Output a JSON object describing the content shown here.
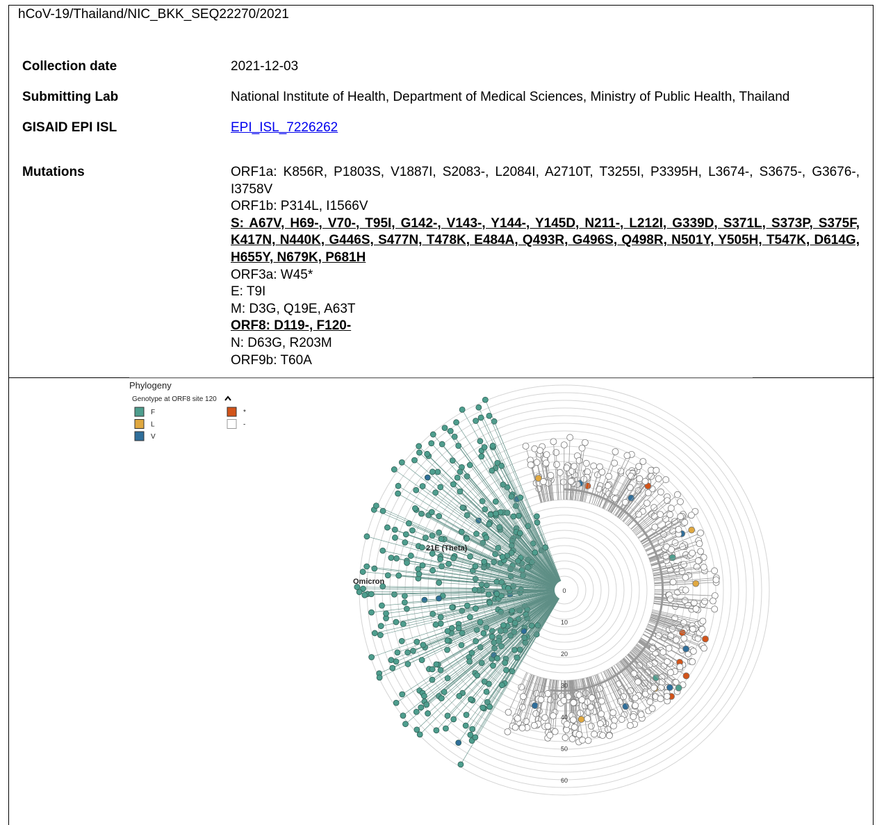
{
  "header": {
    "title": "hCoV-19/Thailand/NIC_BKK_SEQ22270/2021"
  },
  "fields": [
    {
      "label": "Collection date",
      "value": "2021-12-03"
    },
    {
      "label": "Submitting Lab",
      "value": "National Institute of Health, Department of Medical Sciences, Ministry of Public Health, Thailand"
    },
    {
      "label": "GISAID EPI ISL",
      "value": "EPI_ISL_7226262",
      "link": true
    }
  ],
  "mutations": {
    "label": "Mutations",
    "lines": [
      {
        "text": "ORF1a: K856R, P1803S, V1887I, S2083-, L2084I, A2710T, T3255I, P3395H, L3674-, S3675-, G3676-, I3758V",
        "emphasis": false
      },
      {
        "text": "ORF1b: P314L, I1566V",
        "emphasis": false
      },
      {
        "text": "S: A67V, H69-, V70-, T95I, G142-, V143-, Y144-, Y145D, N211-, L212I, G339D, S371L, S373P, S375F, K417N, N440K, G446S, S477N, T478K, E484A, Q493R, G496S, Q498R, N501Y, Y505H, T547K, D614G, H655Y, N679K, P681H",
        "emphasis": true
      },
      {
        "text": "ORF3a: W45*",
        "emphasis": false
      },
      {
        "text": "E: T9I",
        "emphasis": false
      },
      {
        "text": "M: D3G, Q19E, A63T",
        "emphasis": false
      },
      {
        "text": "ORF8: D119-, F120-",
        "emphasis": true
      },
      {
        "text": "N: D63G, R203M",
        "emphasis": false
      },
      {
        "text": "ORF9b: T60A",
        "emphasis": false
      }
    ]
  },
  "figure": {
    "title": "Phylogeny",
    "legend_title": "Genotype at ORF8 site 120",
    "legend": [
      {
        "label": "F",
        "color": "#4e9e8e"
      },
      {
        "label": "L",
        "color": "#e0a840"
      },
      {
        "label": "V",
        "color": "#2f6e9a"
      },
      {
        "label": "*",
        "color": "#d2541a"
      },
      {
        "label": "-",
        "color": "#ffffff"
      }
    ],
    "clades": [
      "21E (Theta)",
      "Omicron"
    ],
    "ticks": [
      0,
      10,
      20,
      30,
      40,
      50,
      60
    ]
  }
}
